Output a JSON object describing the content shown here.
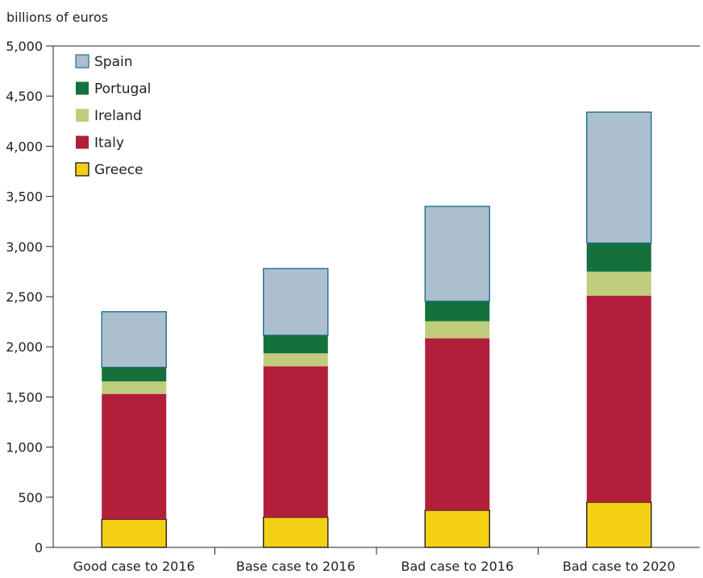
{
  "chart_data": {
    "type": "bar",
    "stacked": true,
    "ylabel": "billions of euros",
    "ylim": [
      0,
      5000
    ],
    "y_ticks": [
      0,
      500,
      1000,
      1500,
      2000,
      2500,
      3000,
      3500,
      4000,
      4500,
      5000
    ],
    "y_tick_labels": [
      "0",
      "500",
      "1,000",
      "1,500",
      "2,000",
      "2,500",
      "3,000",
      "3,500",
      "4,000",
      "4,500",
      "5,000"
    ],
    "categories": [
      "Good case to 2016",
      "Base case to 2016",
      "Bad case to 2016",
      "Bad case to 2020"
    ],
    "series": [
      {
        "name": "Greece",
        "color": "#f4d015",
        "values": [
          280,
          300,
          370,
          450
        ]
      },
      {
        "name": "Italy",
        "color": "#b21f3b",
        "values": [
          1250,
          1505,
          1715,
          2060
        ]
      },
      {
        "name": "Ireland",
        "color": "#bfcd7d",
        "values": [
          125,
          130,
          170,
          240
        ]
      },
      {
        "name": "Portugal",
        "color": "#14703c",
        "values": [
          140,
          180,
          200,
          285
        ]
      },
      {
        "name": "Spain",
        "color": "#acbfce",
        "values": [
          555,
          665,
          945,
          1305
        ]
      }
    ],
    "legend_order": [
      "Spain",
      "Portugal",
      "Ireland",
      "Italy",
      "Greece"
    ],
    "legend_position": "top-left",
    "grid": false
  }
}
